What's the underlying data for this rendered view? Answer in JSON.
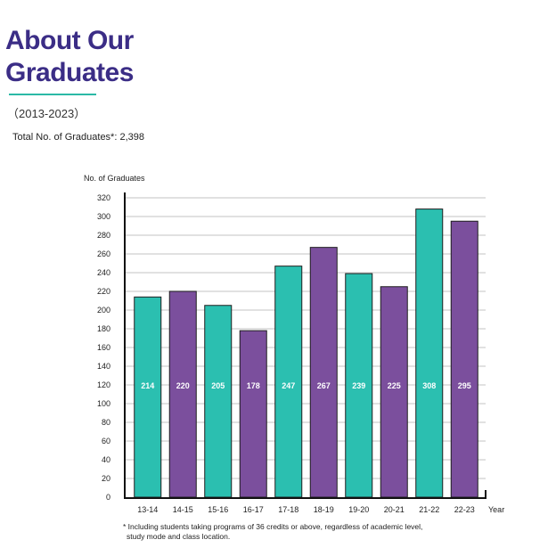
{
  "header": {
    "title_line1": "About Our",
    "title_line2": "Graduates",
    "period": "（2013-2023）",
    "total": "Total No. of Graduates*: 2,398"
  },
  "colors": {
    "title": "#3b2d86",
    "teal": "#2bbfb0",
    "purple": "#7b4f9d",
    "rule": "#2bb9a6"
  },
  "chart_data": {
    "type": "bar",
    "title": "",
    "ylabel": "No. of Graduates",
    "xlabel": "Year",
    "ylim": [
      0,
      320
    ],
    "yticks": [
      0,
      20,
      40,
      60,
      80,
      100,
      120,
      140,
      160,
      180,
      200,
      220,
      240,
      260,
      280,
      300,
      320
    ],
    "grid": true,
    "categories": [
      "13-14",
      "14-15",
      "15-16",
      "16-17",
      "17-18",
      "18-19",
      "19-20",
      "20-21",
      "21-22",
      "22-23"
    ],
    "values": [
      214,
      220,
      205,
      178,
      247,
      267,
      239,
      225,
      308,
      295
    ],
    "bar_colors": [
      "teal",
      "purple",
      "teal",
      "purple",
      "teal",
      "purple",
      "teal",
      "purple",
      "teal",
      "purple"
    ]
  },
  "footnote": {
    "line1": "* Including students taking programs of 36 credits or above, regardless of academic level,",
    "line2": "study mode and class location."
  }
}
